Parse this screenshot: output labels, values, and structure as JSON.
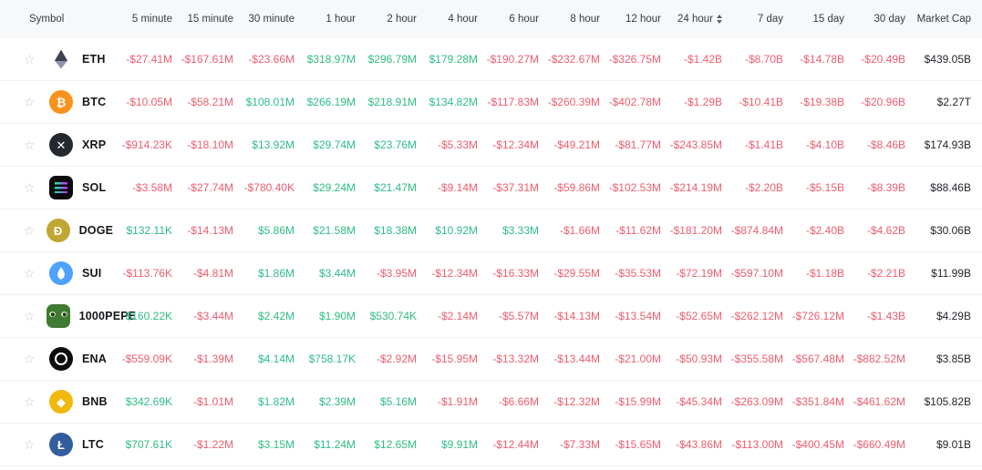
{
  "header": {
    "columns": [
      {
        "label": "Symbol",
        "sort": false
      },
      {
        "label": "5 minute",
        "sort": false
      },
      {
        "label": "15 minute",
        "sort": false
      },
      {
        "label": "30 minute",
        "sort": false
      },
      {
        "label": "1 hour",
        "sort": false
      },
      {
        "label": "2 hour",
        "sort": false
      },
      {
        "label": "4 hour",
        "sort": false
      },
      {
        "label": "6 hour",
        "sort": false
      },
      {
        "label": "8 hour",
        "sort": false
      },
      {
        "label": "12 hour",
        "sort": false
      },
      {
        "label": "24 hour",
        "sort": true
      },
      {
        "label": "7 day",
        "sort": false
      },
      {
        "label": "15 day",
        "sort": false
      },
      {
        "label": "30 day",
        "sort": false
      },
      {
        "label": "Market Cap",
        "sort": false
      }
    ]
  },
  "favorite_star_glyph": "☆",
  "rows": [
    {
      "symbol": "ETH",
      "icon": {
        "cls": "ico-eth",
        "bg": "",
        "glyph": ""
      },
      "values": [
        "-$27.41M",
        "-$167.61M",
        "-$23.66M",
        "$318.97M",
        "$296.79M",
        "$179.28M",
        "-$190.27M",
        "-$232.67M",
        "-$326.75M",
        "-$1.42B",
        "-$8.70B",
        "-$14.78B",
        "-$20.49B"
      ],
      "market_cap": "$439.05B"
    },
    {
      "symbol": "BTC",
      "icon": {
        "cls": "",
        "bg": "#F7931A",
        "glyph": "₿"
      },
      "values": [
        "-$10.05M",
        "-$58.21M",
        "$108.01M",
        "$266.19M",
        "$218.91M",
        "$134.82M",
        "-$117.83M",
        "-$260.39M",
        "-$402.78M",
        "-$1.29B",
        "-$10.41B",
        "-$19.38B",
        "-$20.96B"
      ],
      "market_cap": "$2.27T"
    },
    {
      "symbol": "XRP",
      "icon": {
        "cls": "",
        "bg": "#23292F",
        "glyph": "✕"
      },
      "values": [
        "-$914.23K",
        "-$18.10M",
        "$13.92M",
        "$29.74M",
        "$23.76M",
        "-$5.33M",
        "-$12.34M",
        "-$49.21M",
        "-$81.77M",
        "-$243.85M",
        "-$1.41B",
        "-$4.10B",
        "-$8.46B"
      ],
      "market_cap": "$174.93B"
    },
    {
      "symbol": "SOL",
      "icon": {
        "cls": "ico-sol",
        "bg": "",
        "glyph": ""
      },
      "values": [
        "-$3.58M",
        "-$27.74M",
        "-$780.40K",
        "$29.24M",
        "$21.47M",
        "-$9.14M",
        "-$37.31M",
        "-$59.86M",
        "-$102.53M",
        "-$214.19M",
        "-$2.20B",
        "-$5.15B",
        "-$8.39B"
      ],
      "market_cap": "$88.46B"
    },
    {
      "symbol": "DOGE",
      "icon": {
        "cls": "",
        "bg": "#C2A633",
        "glyph": "Ð"
      },
      "values": [
        "$132.11K",
        "-$14.13M",
        "$5.86M",
        "$21.58M",
        "$18.38M",
        "$10.92M",
        "$3.33M",
        "-$1.66M",
        "-$11.62M",
        "-$181.20M",
        "-$874.84M",
        "-$2.40B",
        "-$4.62B"
      ],
      "market_cap": "$30.06B"
    },
    {
      "symbol": "SUI",
      "icon": {
        "cls": "ico-sui",
        "bg": "#4DA2FF",
        "glyph": ""
      },
      "values": [
        "-$113.76K",
        "-$4.81M",
        "$1.86M",
        "$3.44M",
        "-$3.95M",
        "-$12.34M",
        "-$16.33M",
        "-$29.55M",
        "-$35.53M",
        "-$72.19M",
        "-$597.10M",
        "-$1.18B",
        "-$2.21B"
      ],
      "market_cap": "$11.99B"
    },
    {
      "symbol": "1000PEPE",
      "icon": {
        "cls": "ico-pepe",
        "bg": "",
        "glyph": ""
      },
      "values": [
        "$160.22K",
        "-$3.44M",
        "$2.42M",
        "$1.90M",
        "$530.74K",
        "-$2.14M",
        "-$5.57M",
        "-$14.13M",
        "-$13.54M",
        "-$52.65M",
        "-$262.12M",
        "-$726.12M",
        "-$1.43B"
      ],
      "market_cap": "$4.29B"
    },
    {
      "symbol": "ENA",
      "icon": {
        "cls": "ico-ena",
        "bg": "#0D0D10",
        "glyph": ""
      },
      "values": [
        "-$559.09K",
        "-$1.39M",
        "$4.14M",
        "$758.17K",
        "-$2.92M",
        "-$15.95M",
        "-$13.32M",
        "-$13.44M",
        "-$21.00M",
        "-$50.93M",
        "-$355.58M",
        "-$567.48M",
        "-$882.52M"
      ],
      "market_cap": "$3.85B"
    },
    {
      "symbol": "BNB",
      "icon": {
        "cls": "",
        "bg": "#F0B90B",
        "glyph": "◆"
      },
      "values": [
        "$342.69K",
        "-$1.01M",
        "$1.82M",
        "$2.39M",
        "$5.16M",
        "-$1.91M",
        "-$6.66M",
        "-$12.32M",
        "-$15.99M",
        "-$45.34M",
        "-$263.09M",
        "-$351.84M",
        "-$461.62M"
      ],
      "market_cap": "$105.82B"
    },
    {
      "symbol": "LTC",
      "icon": {
        "cls": "",
        "bg": "#345D9D",
        "glyph": "Ł"
      },
      "values": [
        "$707.61K",
        "-$1.22M",
        "$3.15M",
        "$11.24M",
        "$12.65M",
        "$9.91M",
        "-$12.44M",
        "-$7.33M",
        "-$15.65M",
        "-$43.86M",
        "-$113.00M",
        "-$400.45M",
        "-$660.49M"
      ],
      "market_cap": "$9.01B"
    }
  ],
  "colors": {
    "positive": "#2EBD85",
    "negative": "#EE5D6E",
    "market_cap_text": "#23262C",
    "header_background": "#F7F8FA",
    "row_border": "#F0F1F4",
    "star": "#C4C9D2",
    "symbol_text": "#14171A",
    "header_text": "#363B43"
  }
}
